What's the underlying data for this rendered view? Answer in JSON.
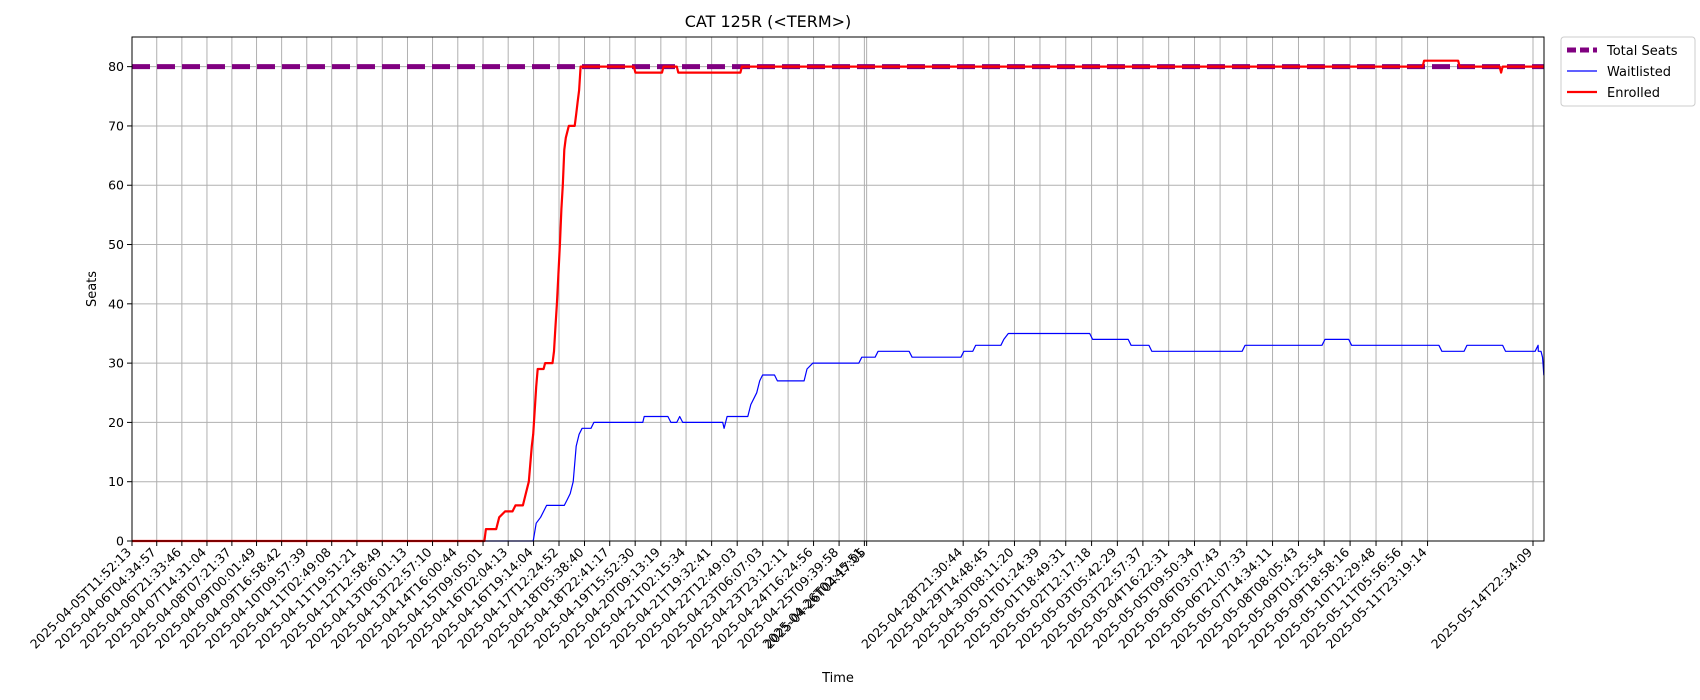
{
  "chart_data": {
    "type": "line",
    "title": "CAT 125R (<TERM>)",
    "xlabel": "Time",
    "ylabel": "Seats",
    "ylim": [
      0,
      85
    ],
    "y_ticks": [
      0,
      10,
      20,
      30,
      40,
      50,
      60,
      70,
      80
    ],
    "grid": true,
    "legend_position": "outside-top-right",
    "x_range": [
      "2025-04-05T11:52:13",
      "2025-05-15T06:00:00"
    ],
    "x_ticks": [
      "2025-04-05T11:52:13",
      "2025-04-06T04:34:57",
      "2025-04-06T21:33:46",
      "2025-04-07T14:31:04",
      "2025-04-08T07:21:37",
      "2025-04-09T00:01:49",
      "2025-04-09T16:58:42",
      "2025-04-10T09:57:39",
      "2025-04-11T02:49:08",
      "2025-04-11T19:51:21",
      "2025-04-12T12:58:49",
      "2025-04-13T06:01:13",
      "2025-04-13T22:57:10",
      "2025-04-14T16:00:44",
      "2025-04-15T09:05:01",
      "2025-04-16T02:04:13",
      "2025-04-16T19:14:04",
      "2025-04-17T12:24:52",
      "2025-04-18T05:38:40",
      "2025-04-18T22:41:17",
      "2025-04-19T15:52:30",
      "2025-04-20T09:13:19",
      "2025-04-21T02:15:34",
      "2025-04-21T19:32:41",
      "2025-04-22T12:49:03",
      "2025-04-23T06:07:03",
      "2025-04-23T23:12:11",
      "2025-04-24T16:24:56",
      "2025-04-25T09:39:58",
      "2025-04-26T02:45:51",
      "2025-04-26T04:17:05",
      "2025-04-28T21:30:44",
      "2025-04-29T14:48:45",
      "2025-04-30T08:11:20",
      "2025-05-01T01:24:39",
      "2025-05-01T18:49:31",
      "2025-05-02T12:17:18",
      "2025-05-03T05:42:29",
      "2025-05-03T22:57:37",
      "2025-05-04T16:22:31",
      "2025-05-05T09:50:34",
      "2025-05-06T03:07:43",
      "2025-05-06T21:07:33",
      "2025-05-07T14:34:11",
      "2025-05-08T08:05:43",
      "2025-05-09T01:25:54",
      "2025-05-09T18:58:16",
      "2025-05-10T12:29:48",
      "2025-05-11T05:56:56",
      "2025-05-11T23:19:14",
      "2025-05-14T22:34:09"
    ],
    "series": [
      {
        "name": "Total Seats",
        "color": "#800080",
        "style": "dashed",
        "points": [
          [
            "2025-04-05T11:52:13",
            80
          ],
          [
            "2025-05-15T06:00:00",
            80
          ]
        ]
      },
      {
        "name": "Waitlisted",
        "color": "#0000ff",
        "style": "solid",
        "points": [
          [
            "2025-04-05T11:52:13",
            0
          ],
          [
            "2025-04-16T19:00:00",
            0
          ],
          [
            "2025-04-16T21:00:00",
            3
          ],
          [
            "2025-04-17T00:00:00",
            4
          ],
          [
            "2025-04-17T02:00:00",
            5
          ],
          [
            "2025-04-17T04:00:00",
            6
          ],
          [
            "2025-04-17T16:00:00",
            6
          ],
          [
            "2025-04-17T18:00:00",
            7
          ],
          [
            "2025-04-17T20:00:00",
            8
          ],
          [
            "2025-04-17T22:00:00",
            10
          ],
          [
            "2025-04-18T00:00:00",
            16
          ],
          [
            "2025-04-18T02:00:00",
            18
          ],
          [
            "2025-04-18T04:00:00",
            19
          ],
          [
            "2025-04-18T10:00:00",
            19
          ],
          [
            "2025-04-18T12:00:00",
            20
          ],
          [
            "2025-04-19T21:00:00",
            20
          ],
          [
            "2025-04-19T22:00:00",
            21
          ],
          [
            "2025-04-20T14:00:00",
            21
          ],
          [
            "2025-04-20T16:00:00",
            20
          ],
          [
            "2025-04-20T20:00:00",
            20
          ],
          [
            "2025-04-20T22:00:00",
            21
          ],
          [
            "2025-04-21T00:00:00",
            20
          ],
          [
            "2025-04-22T03:00:00",
            20
          ],
          [
            "2025-04-22T04:00:00",
            19
          ],
          [
            "2025-04-22T06:00:00",
            21
          ],
          [
            "2025-04-22T20:00:00",
            21
          ],
          [
            "2025-04-22T22:00:00",
            23
          ],
          [
            "2025-04-23T02:00:00",
            25
          ],
          [
            "2025-04-23T04:00:00",
            27
          ],
          [
            "2025-04-23T06:00:00",
            28
          ],
          [
            "2025-04-23T14:00:00",
            28
          ],
          [
            "2025-04-23T16:00:00",
            27
          ],
          [
            "2025-04-24T10:00:00",
            27
          ],
          [
            "2025-04-24T12:00:00",
            29
          ],
          [
            "2025-04-24T16:00:00",
            30
          ],
          [
            "2025-04-25T23:00:00",
            30
          ],
          [
            "2025-04-26T01:00:00",
            31
          ],
          [
            "2025-04-26T10:00:00",
            31
          ],
          [
            "2025-04-26T12:00:00",
            32
          ],
          [
            "2025-04-27T09:00:00",
            32
          ],
          [
            "2025-04-27T11:00:00",
            31
          ],
          [
            "2025-04-28T20:00:00",
            31
          ],
          [
            "2025-04-28T22:00:00",
            32
          ],
          [
            "2025-04-29T04:00:00",
            32
          ],
          [
            "2025-04-29T06:00:00",
            33
          ],
          [
            "2025-04-29T23:00:00",
            33
          ],
          [
            "2025-04-30T01:00:00",
            34
          ],
          [
            "2025-04-30T04:00:00",
            35
          ],
          [
            "2025-05-02T11:00:00",
            35
          ],
          [
            "2025-05-02T13:00:00",
            34
          ],
          [
            "2025-05-03T13:00:00",
            34
          ],
          [
            "2025-05-03T15:00:00",
            33
          ],
          [
            "2025-05-04T03:00:00",
            33
          ],
          [
            "2025-05-04T05:00:00",
            32
          ],
          [
            "2025-05-06T18:00:00",
            32
          ],
          [
            "2025-05-06T20:00:00",
            33
          ],
          [
            "2025-05-09T00:00:00",
            33
          ],
          [
            "2025-05-09T02:00:00",
            34
          ],
          [
            "2025-05-09T18:00:00",
            34
          ],
          [
            "2025-05-09T20:00:00",
            33
          ],
          [
            "2025-05-12T07:00:00",
            33
          ],
          [
            "2025-05-12T09:00:00",
            32
          ],
          [
            "2025-05-13T00:00:00",
            32
          ],
          [
            "2025-05-13T02:00:00",
            33
          ],
          [
            "2025-05-14T02:00:00",
            33
          ],
          [
            "2025-05-14T04:00:00",
            32
          ],
          [
            "2025-05-15T00:00:00",
            32
          ],
          [
            "2025-05-15T02:00:00",
            33
          ],
          [
            "2025-05-15T02:10:00",
            32
          ],
          [
            "2025-05-15T04:00:00",
            32
          ],
          [
            "2025-05-15T05:00:00",
            31
          ],
          [
            "2025-05-15T05:20:00",
            30
          ],
          [
            "2025-05-15T05:35:00",
            29
          ],
          [
            "2025-05-15T05:50:00",
            28
          ],
          [
            "2025-05-15T06:00:00",
            28
          ]
        ]
      },
      {
        "name": "Enrolled",
        "color": "#ff0000",
        "style": "solid",
        "points": [
          [
            "2025-04-05T11:52:13",
            0
          ],
          [
            "2025-04-15T10:00:00",
            0
          ],
          [
            "2025-04-15T11:00:00",
            2
          ],
          [
            "2025-04-15T18:00:00",
            2
          ],
          [
            "2025-04-15T20:00:00",
            4
          ],
          [
            "2025-04-16T00:00:00",
            5
          ],
          [
            "2025-04-16T05:00:00",
            5
          ],
          [
            "2025-04-16T07:00:00",
            6
          ],
          [
            "2025-04-16T12:00:00",
            6
          ],
          [
            "2025-04-16T14:00:00",
            8
          ],
          [
            "2025-04-16T16:00:00",
            10
          ],
          [
            "2025-04-16T17:00:00",
            13
          ],
          [
            "2025-04-16T18:00:00",
            16
          ],
          [
            "2025-04-16T19:00:00",
            18
          ],
          [
            "2025-04-16T20:00:00",
            22
          ],
          [
            "2025-04-16T21:00:00",
            26
          ],
          [
            "2025-04-16T22:00:00",
            29
          ],
          [
            "2025-04-17T02:00:00",
            29
          ],
          [
            "2025-04-17T03:00:00",
            30
          ],
          [
            "2025-04-17T08:00:00",
            30
          ],
          [
            "2025-04-17T09:00:00",
            32
          ],
          [
            "2025-04-17T10:00:00",
            36
          ],
          [
            "2025-04-17T11:00:00",
            40
          ],
          [
            "2025-04-17T12:00:00",
            45
          ],
          [
            "2025-04-17T13:00:00",
            50
          ],
          [
            "2025-04-17T14:00:00",
            56
          ],
          [
            "2025-04-17T15:00:00",
            60
          ],
          [
            "2025-04-17T16:00:00",
            66
          ],
          [
            "2025-04-17T17:00:00",
            68
          ],
          [
            "2025-04-17T19:00:00",
            70
          ],
          [
            "2025-04-17T23:00:00",
            70
          ],
          [
            "2025-04-18T00:00:00",
            72
          ],
          [
            "2025-04-18T01:00:00",
            74
          ],
          [
            "2025-04-18T02:00:00",
            76
          ],
          [
            "2025-04-18T03:00:00",
            80
          ],
          [
            "2025-04-19T15:00:00",
            80
          ],
          [
            "2025-04-19T16:00:00",
            79
          ],
          [
            "2025-04-20T10:00:00",
            79
          ],
          [
            "2025-04-20T11:00:00",
            80
          ],
          [
            "2025-04-20T20:00:00",
            80
          ],
          [
            "2025-04-20T21:00:00",
            79
          ],
          [
            "2025-04-22T15:00:00",
            79
          ],
          [
            "2025-04-22T16:00:00",
            80
          ],
          [
            "2025-05-11T20:00:00",
            80
          ],
          [
            "2025-05-11T21:00:00",
            81
          ],
          [
            "2025-05-12T20:00:00",
            81
          ],
          [
            "2025-05-12T21:00:00",
            80
          ],
          [
            "2025-05-14T00:00:00",
            80
          ],
          [
            "2025-05-14T01:00:00",
            79
          ],
          [
            "2025-05-14T02:00:00",
            80
          ],
          [
            "2025-05-15T06:00:00",
            80
          ]
        ]
      }
    ]
  }
}
